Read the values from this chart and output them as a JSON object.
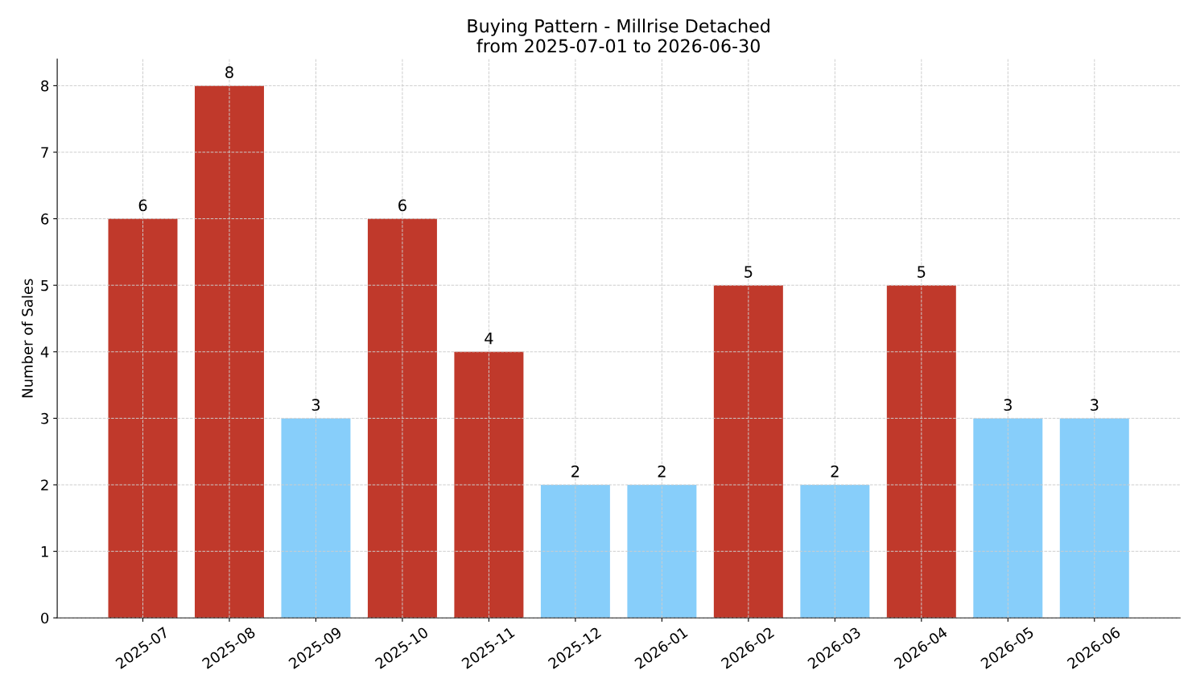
{
  "chart_data": {
    "type": "bar",
    "title": "Buying Pattern - Millrise Detached\nfrom 2025-07-01 to 2026-06-30",
    "ylabel": "Number of Sales",
    "categories": [
      "2025-07",
      "2025-08",
      "2025-09",
      "2025-10",
      "2025-11",
      "2025-12",
      "2026-01",
      "2026-02",
      "2026-03",
      "2026-04",
      "2026-05",
      "2026-06"
    ],
    "values": [
      6,
      8,
      3,
      6,
      4,
      2,
      2,
      5,
      2,
      5,
      3,
      3
    ],
    "colors": [
      "#c0392b",
      "#c0392b",
      "#87cefa",
      "#c0392b",
      "#c0392b",
      "#87cefa",
      "#87cefa",
      "#c0392b",
      "#87cefa",
      "#c0392b",
      "#87cefa",
      "#87cefa"
    ],
    "ylim": [
      0,
      8.4
    ],
    "yticks": [
      0,
      1,
      2,
      3,
      4,
      5,
      6,
      7,
      8
    ],
    "grid": true,
    "data_labels": true
  }
}
